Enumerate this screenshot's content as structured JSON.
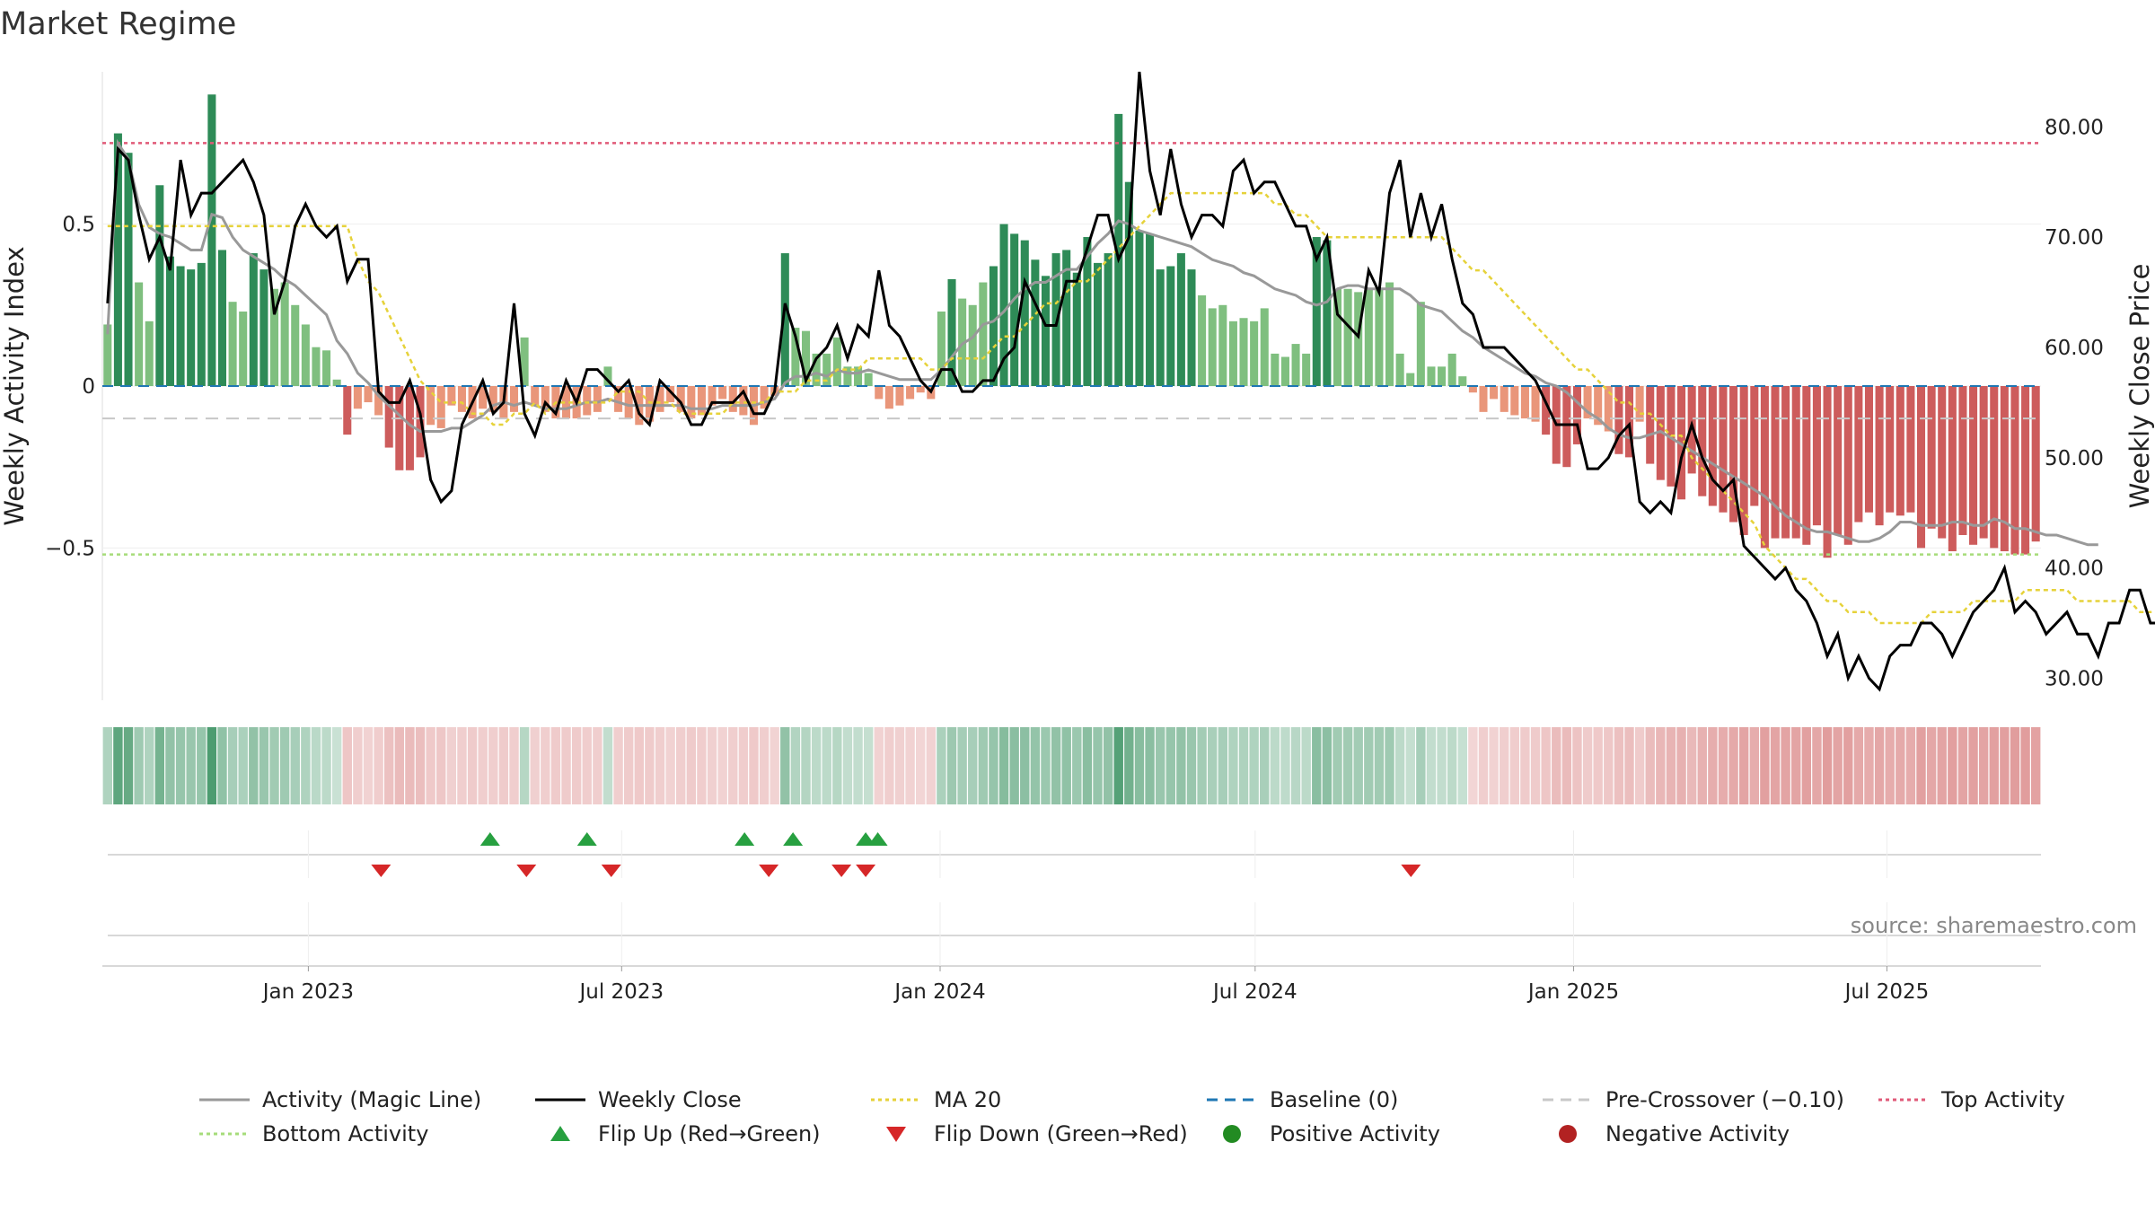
{
  "title": "Market Regime",
  "source": "source: sharemaestro.com",
  "colors": {
    "pos_dark": "#2e8b57",
    "pos_light": "#7fbf7f",
    "neg_dark": "#cd5c5c",
    "neg_light": "#e9967a",
    "close": "#000000",
    "magic": "#999999",
    "ma20": "#e6d23a",
    "baseline": "#1f77b4",
    "precross": "#c8c8c8",
    "top": "#e05a78",
    "bottom": "#a6dc7a",
    "flip_up": "#27a040",
    "flip_down": "#d62728",
    "pos_marker": "#228b22",
    "neg_marker": "#b22222"
  },
  "chart_data": {
    "type": "bar",
    "title": "Market Regime",
    "x_range": [
      "2022-09-04",
      "2025-09-28"
    ],
    "x_ticks": [
      "Jan 2023",
      "Jul 2023",
      "Jan 2024",
      "Jul 2024",
      "Jan 2025",
      "Jul 2025"
    ],
    "left_axis": {
      "label": "Weekly Activity Index",
      "range": [
        -0.97,
        0.97
      ],
      "ticks": [
        "0.5",
        "0",
        "−0.5"
      ]
    },
    "right_axis": {
      "label": "Weekly Close Price",
      "range": [
        28.0,
        85.0
      ],
      "ticks": [
        "80.00",
        "70.00",
        "60.00",
        "50.00",
        "40.00",
        "30.00"
      ]
    },
    "reference_lines": {
      "top_activity": 0.75,
      "bottom_activity": -0.52,
      "pre_crossover": -0.1,
      "baseline": 0
    },
    "activity_weekly": [
      0.19,
      0.78,
      0.72,
      0.32,
      0.2,
      0.62,
      0.4,
      0.37,
      0.36,
      0.38,
      0.9,
      0.42,
      0.26,
      0.23,
      0.41,
      0.36,
      0.3,
      0.32,
      0.25,
      0.19,
      0.12,
      0.11,
      0.02,
      -0.15,
      -0.07,
      -0.05,
      -0.09,
      -0.19,
      -0.26,
      -0.26,
      -0.22,
      -0.12,
      -0.13,
      -0.06,
      -0.08,
      -0.1,
      -0.07,
      -0.08,
      -0.1,
      -0.08,
      0.15,
      -0.06,
      -0.08,
      -0.1,
      -0.1,
      -0.1,
      -0.09,
      -0.08,
      0.06,
      -0.08,
      -0.1,
      -0.12,
      -0.11,
      -0.08,
      -0.05,
      -0.08,
      -0.1,
      -0.09,
      -0.06,
      -0.04,
      -0.08,
      -0.09,
      -0.12,
      -0.07,
      -0.03,
      0.41,
      0.18,
      0.17,
      0.1,
      0.1,
      0.15,
      0.06,
      0.06,
      0.04,
      -0.04,
      -0.07,
      -0.06,
      -0.04,
      -0.02,
      -0.04,
      0.23,
      0.33,
      0.27,
      0.25,
      0.32,
      0.37,
      0.5,
      0.47,
      0.45,
      0.39,
      0.34,
      0.41,
      0.42,
      0.35,
      0.46,
      0.38,
      0.41,
      0.84,
      0.63,
      0.48,
      0.47,
      0.36,
      0.37,
      0.41,
      0.36,
      0.28,
      0.24,
      0.25,
      0.2,
      0.21,
      0.2,
      0.24,
      0.1,
      0.09,
      0.13,
      0.1,
      0.46,
      0.45,
      0.3,
      0.3,
      0.29,
      0.3,
      0.3,
      0.32,
      0.1,
      0.04,
      0.26,
      0.06,
      0.06,
      0.1,
      0.03,
      -0.02,
      -0.08,
      -0.04,
      -0.08,
      -0.09,
      -0.1,
      -0.11,
      -0.15,
      -0.24,
      -0.25,
      -0.18,
      -0.1,
      -0.12,
      -0.14,
      -0.21,
      -0.22,
      -0.11,
      -0.24,
      -0.29,
      -0.31,
      -0.35,
      -0.27,
      -0.34,
      -0.37,
      -0.39,
      -0.42,
      -0.46,
      -0.37,
      -0.5,
      -0.47,
      -0.47,
      -0.47,
      -0.49,
      -0.43,
      -0.53,
      -0.46,
      -0.49,
      -0.42,
      -0.39,
      -0.43,
      -0.39,
      -0.4,
      -0.39,
      -0.5,
      -0.44,
      -0.47,
      -0.51,
      -0.46,
      -0.49,
      -0.47,
      -0.5,
      -0.51,
      -0.52,
      -0.52,
      -0.48
    ],
    "magic_line_weekly": [
      0.16,
      0.75,
      0.7,
      0.56,
      0.49,
      0.47,
      0.46,
      0.44,
      0.42,
      0.42,
      0.53,
      0.52,
      0.46,
      0.42,
      0.4,
      0.38,
      0.36,
      0.33,
      0.31,
      0.28,
      0.25,
      0.22,
      0.14,
      0.1,
      0.04,
      0.01,
      -0.03,
      -0.06,
      -0.09,
      -0.12,
      -0.14,
      -0.14,
      -0.14,
      -0.13,
      -0.13,
      -0.11,
      -0.09,
      -0.06,
      -0.05,
      -0.06,
      -0.05,
      -0.06,
      -0.07,
      -0.07,
      -0.07,
      -0.06,
      -0.05,
      -0.05,
      -0.04,
      -0.05,
      -0.06,
      -0.06,
      -0.06,
      -0.06,
      -0.06,
      -0.06,
      -0.07,
      -0.07,
      -0.07,
      -0.06,
      -0.06,
      -0.06,
      -0.06,
      -0.05,
      -0.04,
      0.01,
      0.03,
      0.03,
      0.04,
      0.03,
      0.05,
      0.04,
      0.04,
      0.05,
      0.04,
      0.03,
      0.02,
      0.02,
      0.02,
      0.02,
      0.05,
      0.09,
      0.13,
      0.15,
      0.19,
      0.2,
      0.23,
      0.27,
      0.3,
      0.32,
      0.32,
      0.34,
      0.36,
      0.36,
      0.4,
      0.44,
      0.47,
      0.51,
      0.5,
      0.48,
      0.47,
      0.46,
      0.45,
      0.44,
      0.43,
      0.41,
      0.39,
      0.38,
      0.37,
      0.35,
      0.34,
      0.32,
      0.3,
      0.29,
      0.28,
      0.26,
      0.25,
      0.26,
      0.3,
      0.31,
      0.31,
      0.3,
      0.3,
      0.3,
      0.3,
      0.28,
      0.25,
      0.24,
      0.23,
      0.2,
      0.17,
      0.15,
      0.12,
      0.1,
      0.08,
      0.06,
      0.04,
      0.03,
      0.01,
      0,
      -0.02,
      -0.05,
      -0.08,
      -0.1,
      -0.13,
      -0.15,
      -0.16,
      -0.16,
      -0.15,
      -0.14,
      -0.16,
      -0.18,
      -0.2,
      -0.22,
      -0.24,
      -0.26,
      -0.28,
      -0.3,
      -0.32,
      -0.34,
      -0.37,
      -0.4,
      -0.42,
      -0.44,
      -0.45,
      -0.45,
      -0.46,
      -0.47,
      -0.48,
      -0.48,
      -0.47,
      -0.45,
      -0.42,
      -0.42,
      -0.43,
      -0.43,
      -0.43,
      -0.42,
      -0.42,
      -0.43,
      -0.43,
      -0.41,
      -0.42,
      -0.44,
      -0.44,
      -0.45,
      -0.46,
      -0.46,
      -0.47,
      -0.48,
      -0.49,
      -0.49
    ],
    "close_weekly": [
      64,
      78,
      77,
      72,
      68,
      70,
      67,
      77,
      72,
      74,
      74,
      75,
      76,
      77,
      75,
      72,
      63,
      66,
      71,
      73,
      71,
      70,
      71,
      66,
      68,
      68,
      56,
      55,
      55,
      57,
      54,
      48,
      46,
      47,
      53,
      55,
      57,
      54,
      55,
      64,
      54,
      52,
      55,
      54,
      57,
      55,
      58,
      58,
      57,
      56,
      57,
      54,
      53,
      57,
      56,
      55,
      53,
      53,
      55,
      55,
      55,
      56,
      54,
      54,
      56,
      64,
      61,
      57,
      59,
      60,
      62,
      59,
      62,
      61,
      67,
      62,
      61,
      59,
      57,
      56,
      58,
      58,
      56,
      56,
      57,
      57,
      59,
      60,
      66,
      64,
      62,
      62,
      66,
      66,
      69,
      72,
      72,
      68,
      70,
      85,
      76,
      72,
      78,
      73,
      70,
      72,
      72,
      71,
      76,
      77,
      74,
      75,
      75,
      73,
      71,
      71,
      68,
      70,
      63,
      62,
      61,
      67,
      65,
      74,
      77,
      70,
      74,
      70,
      73,
      68,
      64,
      63,
      60,
      60,
      60,
      59,
      58,
      57,
      55,
      53,
      53,
      53,
      49,
      49,
      50,
      52,
      53,
      46,
      45,
      46,
      45,
      50,
      53,
      50,
      48,
      47,
      48,
      42,
      41,
      40,
      39,
      40,
      38,
      37,
      35,
      32,
      34,
      30,
      32,
      30,
      29,
      32,
      33,
      33,
      35,
      35,
      34,
      32,
      34,
      36,
      37,
      38,
      40,
      36,
      37,
      36,
      34,
      35,
      36,
      34,
      34,
      32,
      35,
      35,
      38,
      38,
      35,
      35,
      34
    ],
    "ma20_weekly": [
      71,
      71,
      71,
      71,
      71,
      71,
      71,
      71,
      71,
      71,
      71,
      71,
      71,
      71,
      71,
      71,
      71,
      71,
      71,
      71,
      71,
      71,
      71,
      71,
      68,
      66,
      65,
      63,
      61,
      59,
      57,
      56,
      55,
      55,
      55,
      54,
      54,
      53,
      53,
      54,
      54,
      55,
      54,
      55,
      55,
      55,
      55,
      55,
      55,
      56,
      56,
      56,
      55,
      55,
      55,
      54,
      54,
      54,
      54,
      54,
      55,
      55,
      55,
      55,
      56,
      56,
      56,
      57,
      57,
      57,
      58,
      58,
      58,
      59,
      59,
      59,
      59,
      59,
      59,
      58,
      58,
      59,
      59,
      59,
      59,
      60,
      61,
      61,
      62,
      63,
      64,
      64,
      65,
      66,
      66,
      67,
      68,
      69,
      70,
      71,
      72,
      73,
      74,
      74,
      74,
      74,
      74,
      74,
      74,
      74,
      74,
      74,
      73,
      73,
      72,
      72,
      71,
      70,
      70,
      70,
      70,
      70,
      70,
      70,
      70,
      70,
      70,
      70,
      70,
      69,
      68,
      67,
      67,
      66,
      65,
      64,
      63,
      62,
      61,
      60,
      59,
      58,
      58,
      57,
      56,
      55,
      55,
      54,
      54,
      53,
      52,
      52,
      50,
      49,
      48,
      47,
      46,
      45,
      44,
      42,
      41,
      40,
      39,
      39,
      38,
      37,
      37,
      36,
      36,
      36,
      35,
      35,
      35,
      35,
      35,
      36,
      36,
      36,
      36,
      37,
      37,
      37,
      37,
      37,
      38,
      38,
      38,
      38,
      38,
      37,
      37,
      37,
      37,
      37,
      37,
      36,
      36,
      36,
      36
    ],
    "flips": {
      "up": [
        "2023-04-16",
        "2023-06-11",
        "2023-09-10",
        "2023-10-08",
        "2023-11-19",
        "2023-11-26"
      ],
      "down": [
        "2023-02-12",
        "2023-05-07",
        "2023-06-25",
        "2023-09-24",
        "2023-11-05",
        "2023-11-19",
        "2024-09-29"
      ]
    },
    "legend": [
      {
        "label": "Activity (Magic Line)",
        "kind": "line",
        "color": "#999999",
        "dash": ""
      },
      {
        "label": "Weekly Close",
        "kind": "line",
        "color": "#000000",
        "dash": ""
      },
      {
        "label": "MA 20",
        "kind": "line",
        "color": "#e6d23a",
        "dash": "4 4"
      },
      {
        "label": "Baseline (0)",
        "kind": "line",
        "color": "#1f77b4",
        "dash": "12 8"
      },
      {
        "label": "Pre-Crossover (−0.10)",
        "kind": "line",
        "color": "#c8c8c8",
        "dash": "12 8"
      },
      {
        "label": "Top Activity",
        "kind": "line",
        "color": "#e05a78",
        "dash": "4 4"
      },
      {
        "label": "Bottom Activity",
        "kind": "line",
        "color": "#a6dc7a",
        "dash": "4 4"
      },
      {
        "label": "Flip Up (Red→Green)",
        "kind": "tri-up",
        "color": "#27a040",
        "dash": ""
      },
      {
        "label": "Flip Down (Green→Red)",
        "kind": "tri-down",
        "color": "#d62728",
        "dash": ""
      },
      {
        "label": "Positive Activity",
        "kind": "dot",
        "color": "#228b22",
        "dash": ""
      },
      {
        "label": "Negative Activity",
        "kind": "dot",
        "color": "#b22222",
        "dash": ""
      }
    ]
  }
}
